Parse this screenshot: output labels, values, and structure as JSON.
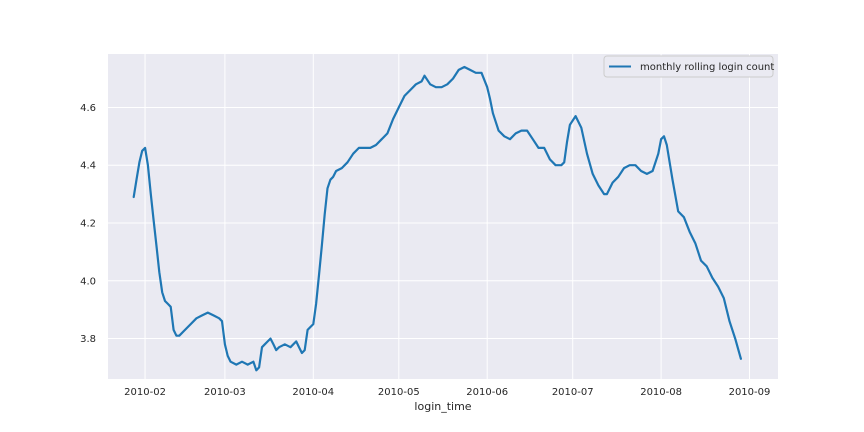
{
  "chart_data": {
    "type": "line",
    "title": "",
    "xlabel": "login_time",
    "ylabel": "",
    "x_axis_type": "date",
    "xlim": [
      "2010-01-19",
      "2010-09-11"
    ],
    "ylim": [
      3.66,
      4.785
    ],
    "grid": true,
    "background": "#eaeaf2",
    "legend_placement": "top-right",
    "x_ticks": [
      {
        "date": "2010-02-01",
        "label": "2010-02"
      },
      {
        "date": "2010-03-01",
        "label": "2010-03"
      },
      {
        "date": "2010-04-01",
        "label": "2010-04"
      },
      {
        "date": "2010-05-01",
        "label": "2010-05"
      },
      {
        "date": "2010-06-01",
        "label": "2010-06"
      },
      {
        "date": "2010-07-01",
        "label": "2010-07"
      },
      {
        "date": "2010-08-01",
        "label": "2010-08"
      },
      {
        "date": "2010-09-01",
        "label": "2010-09"
      }
    ],
    "y_ticks": [
      {
        "value": 3.8,
        "label": "3.8"
      },
      {
        "value": 4.0,
        "label": "4.0"
      },
      {
        "value": 4.2,
        "label": "4.2"
      },
      {
        "value": 4.4,
        "label": "4.4"
      },
      {
        "value": 4.6,
        "label": "4.6"
      }
    ],
    "series": [
      {
        "name": "monthly rolling login count",
        "color": "#1f77b4",
        "points": [
          [
            "2010-01-28",
            4.29
          ],
          [
            "2010-01-29",
            4.35
          ],
          [
            "2010-01-30",
            4.41
          ],
          [
            "2010-01-31",
            4.45
          ],
          [
            "2010-02-01",
            4.46
          ],
          [
            "2010-02-02",
            4.4
          ],
          [
            "2010-02-03",
            4.3
          ],
          [
            "2010-02-04",
            4.21
          ],
          [
            "2010-02-05",
            4.12
          ],
          [
            "2010-02-06",
            4.03
          ],
          [
            "2010-02-07",
            3.96
          ],
          [
            "2010-02-08",
            3.93
          ],
          [
            "2010-02-09",
            3.92
          ],
          [
            "2010-02-10",
            3.91
          ],
          [
            "2010-02-11",
            3.83
          ],
          [
            "2010-02-12",
            3.81
          ],
          [
            "2010-02-13",
            3.81
          ],
          [
            "2010-02-15",
            3.83
          ],
          [
            "2010-02-17",
            3.85
          ],
          [
            "2010-02-19",
            3.87
          ],
          [
            "2010-02-21",
            3.88
          ],
          [
            "2010-02-23",
            3.89
          ],
          [
            "2010-02-25",
            3.88
          ],
          [
            "2010-02-27",
            3.87
          ],
          [
            "2010-02-28",
            3.86
          ],
          [
            "2010-03-01",
            3.78
          ],
          [
            "2010-03-02",
            3.74
          ],
          [
            "2010-03-03",
            3.72
          ],
          [
            "2010-03-05",
            3.71
          ],
          [
            "2010-03-07",
            3.72
          ],
          [
            "2010-03-09",
            3.71
          ],
          [
            "2010-03-11",
            3.72
          ],
          [
            "2010-03-12",
            3.69
          ],
          [
            "2010-03-13",
            3.7
          ],
          [
            "2010-03-14",
            3.77
          ],
          [
            "2010-03-15",
            3.78
          ],
          [
            "2010-03-16",
            3.79
          ],
          [
            "2010-03-17",
            3.8
          ],
          [
            "2010-03-18",
            3.78
          ],
          [
            "2010-03-19",
            3.76
          ],
          [
            "2010-03-20",
            3.77
          ],
          [
            "2010-03-22",
            3.78
          ],
          [
            "2010-03-24",
            3.77
          ],
          [
            "2010-03-26",
            3.79
          ],
          [
            "2010-03-27",
            3.77
          ],
          [
            "2010-03-28",
            3.75
          ],
          [
            "2010-03-29",
            3.76
          ],
          [
            "2010-03-30",
            3.83
          ],
          [
            "2010-03-31",
            3.84
          ],
          [
            "2010-04-01",
            3.85
          ],
          [
            "2010-04-02",
            3.92
          ],
          [
            "2010-04-03",
            4.02
          ],
          [
            "2010-04-04",
            4.12
          ],
          [
            "2010-04-05",
            4.23
          ],
          [
            "2010-04-06",
            4.32
          ],
          [
            "2010-04-07",
            4.35
          ],
          [
            "2010-04-08",
            4.36
          ],
          [
            "2010-04-09",
            4.38
          ],
          [
            "2010-04-11",
            4.39
          ],
          [
            "2010-04-13",
            4.41
          ],
          [
            "2010-04-15",
            4.44
          ],
          [
            "2010-04-17",
            4.46
          ],
          [
            "2010-04-19",
            4.46
          ],
          [
            "2010-04-21",
            4.46
          ],
          [
            "2010-04-23",
            4.47
          ],
          [
            "2010-04-25",
            4.49
          ],
          [
            "2010-04-27",
            4.51
          ],
          [
            "2010-04-29",
            4.56
          ],
          [
            "2010-05-01",
            4.6
          ],
          [
            "2010-05-03",
            4.64
          ],
          [
            "2010-05-05",
            4.66
          ],
          [
            "2010-05-07",
            4.68
          ],
          [
            "2010-05-09",
            4.69
          ],
          [
            "2010-05-10",
            4.71
          ],
          [
            "2010-05-12",
            4.68
          ],
          [
            "2010-05-14",
            4.67
          ],
          [
            "2010-05-16",
            4.67
          ],
          [
            "2010-05-18",
            4.68
          ],
          [
            "2010-05-20",
            4.7
          ],
          [
            "2010-05-22",
            4.73
          ],
          [
            "2010-05-24",
            4.74
          ],
          [
            "2010-05-26",
            4.73
          ],
          [
            "2010-05-28",
            4.72
          ],
          [
            "2010-05-30",
            4.72
          ],
          [
            "2010-06-01",
            4.67
          ],
          [
            "2010-06-02",
            4.63
          ],
          [
            "2010-06-03",
            4.58
          ],
          [
            "2010-06-05",
            4.52
          ],
          [
            "2010-06-07",
            4.5
          ],
          [
            "2010-06-09",
            4.49
          ],
          [
            "2010-06-11",
            4.51
          ],
          [
            "2010-06-13",
            4.52
          ],
          [
            "2010-06-15",
            4.52
          ],
          [
            "2010-06-17",
            4.49
          ],
          [
            "2010-06-19",
            4.46
          ],
          [
            "2010-06-21",
            4.46
          ],
          [
            "2010-06-23",
            4.42
          ],
          [
            "2010-06-25",
            4.4
          ],
          [
            "2010-06-27",
            4.4
          ],
          [
            "2010-06-28",
            4.41
          ],
          [
            "2010-06-29",
            4.48
          ],
          [
            "2010-06-30",
            4.54
          ],
          [
            "2010-07-02",
            4.57
          ],
          [
            "2010-07-04",
            4.53
          ],
          [
            "2010-07-06",
            4.44
          ],
          [
            "2010-07-08",
            4.37
          ],
          [
            "2010-07-10",
            4.33
          ],
          [
            "2010-07-12",
            4.3
          ],
          [
            "2010-07-13",
            4.3
          ],
          [
            "2010-07-15",
            4.34
          ],
          [
            "2010-07-17",
            4.36
          ],
          [
            "2010-07-19",
            4.39
          ],
          [
            "2010-07-21",
            4.4
          ],
          [
            "2010-07-23",
            4.4
          ],
          [
            "2010-07-25",
            4.38
          ],
          [
            "2010-07-27",
            4.37
          ],
          [
            "2010-07-29",
            4.38
          ],
          [
            "2010-07-31",
            4.44
          ],
          [
            "2010-08-01",
            4.49
          ],
          [
            "2010-08-02",
            4.5
          ],
          [
            "2010-08-03",
            4.47
          ],
          [
            "2010-08-05",
            4.35
          ],
          [
            "2010-08-07",
            4.24
          ],
          [
            "2010-08-09",
            4.22
          ],
          [
            "2010-08-11",
            4.17
          ],
          [
            "2010-08-13",
            4.13
          ],
          [
            "2010-08-15",
            4.07
          ],
          [
            "2010-08-17",
            4.05
          ],
          [
            "2010-08-19",
            4.01
          ],
          [
            "2010-08-21",
            3.98
          ],
          [
            "2010-08-23",
            3.94
          ],
          [
            "2010-08-25",
            3.86
          ],
          [
            "2010-08-27",
            3.8
          ],
          [
            "2010-08-29",
            3.73
          ]
        ]
      }
    ]
  }
}
